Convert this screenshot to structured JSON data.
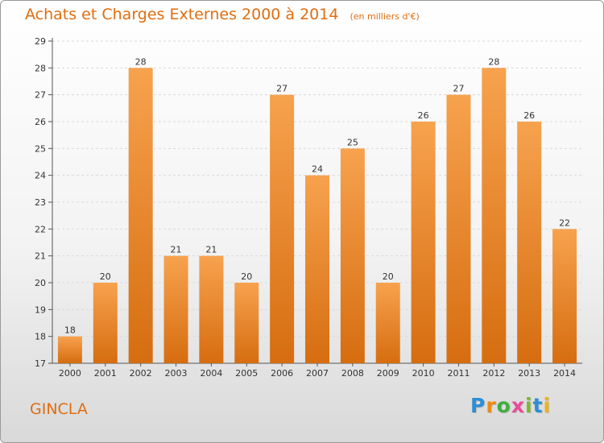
{
  "title": "Achats et Charges Externes 2000 à 2014",
  "subtitle": "(en milliers d'€)",
  "commune": "GINCLA",
  "logo": {
    "text": "Proxiti",
    "letters": [
      "P",
      "r",
      "o",
      "x",
      "i",
      "t",
      "i"
    ],
    "colors": [
      "#2a8fd6",
      "#f08a12",
      "#3fae3f",
      "#e84c9a",
      "#7cb830",
      "#2a8fd6",
      "#f0b412"
    ]
  },
  "chart_data": {
    "type": "bar",
    "categories": [
      "2000",
      "2001",
      "2002",
      "2003",
      "2004",
      "2005",
      "2006",
      "2007",
      "2008",
      "2009",
      "2010",
      "2011",
      "2012",
      "2013",
      "2014"
    ],
    "values": [
      18,
      20,
      28,
      21,
      21,
      20,
      27,
      24,
      25,
      20,
      26,
      27,
      28,
      26,
      22
    ],
    "ylim": [
      17,
      29
    ],
    "yticks": [
      17,
      18,
      19,
      20,
      21,
      22,
      23,
      24,
      25,
      26,
      27,
      28,
      29
    ],
    "xlabel": "",
    "ylabel": "",
    "grid": true,
    "bar_color_top": "#f7a24e",
    "bar_color_bottom": "#d66d10"
  }
}
